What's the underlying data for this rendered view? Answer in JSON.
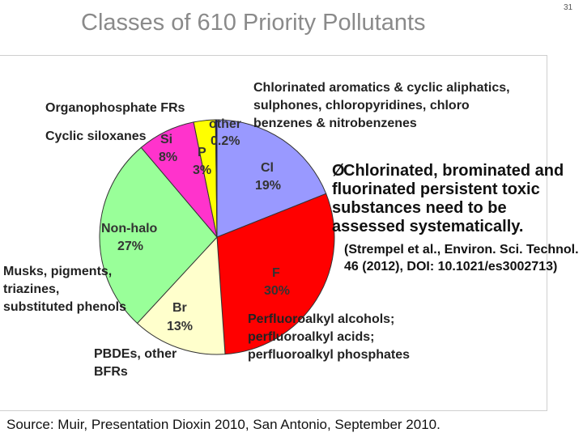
{
  "slide": {
    "title": "Classes of 610 Priority Pollutants",
    "page_number": "31",
    "bullet_marker": "Ø",
    "bullet": "Chlorinated, brominated and fluorinated persistent toxic substances need to be assessed systematically.",
    "reference": "(Strempel et al., Environ. Sci. Technol. 46 (2012), DOI: 10.1021/es3002713)",
    "source": "Source: Muir, Presentation Dioxin 2010, San Antonio, September 2010."
  },
  "chart_data": {
    "type": "pie",
    "title": "",
    "start": "top",
    "direction": "clockwise",
    "slices": [
      {
        "name": "Cl",
        "percent_label": "19%",
        "value": 19,
        "color": "#9999ff"
      },
      {
        "name": "F",
        "percent_label": "30%",
        "value": 30,
        "color": "#ff0000"
      },
      {
        "name": "Br",
        "percent_label": "13%",
        "value": 13,
        "color": "#ffffcc"
      },
      {
        "name": "Non-halo",
        "percent_label": "27%",
        "value": 27,
        "color": "#99ff99"
      },
      {
        "name": "Si",
        "percent_label": "8%",
        "value": 8,
        "color": "#ff33cc"
      },
      {
        "name": "P",
        "percent_label": "3%",
        "value": 3,
        "color": "#ffff00"
      },
      {
        "name": "other",
        "percent_label": "0.2%",
        "value": 0.2,
        "color": "#000080"
      }
    ],
    "annotations": {
      "cl": [
        "Chlorinated aromatics & cyclic aliphatics,",
        "sulphones, chloropyridines, chloro",
        "benzenes & nitrobenzenes"
      ],
      "f": [
        "Perfluoroalkyl alcohols;",
        "perfluoroalkyl acids;",
        "perfluoroalkyl phosphates"
      ],
      "br": [
        "PBDEs, other",
        "BFRs"
      ],
      "nonhalo": [
        "Musks, pigments,",
        "triazines,",
        "substituted phenols"
      ],
      "si": [
        "Cyclic siloxanes"
      ],
      "p": [
        "Organophosphate FRs"
      ]
    }
  }
}
